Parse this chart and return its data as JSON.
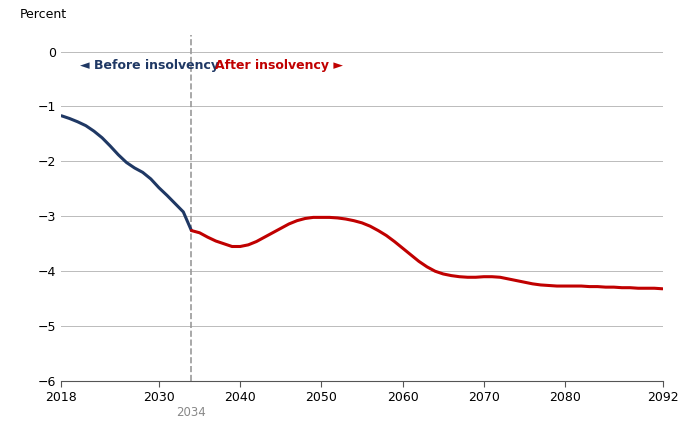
{
  "ylabel": "Percent",
  "xlim": [
    2018,
    2092
  ],
  "ylim": [
    -6,
    0.3
  ],
  "yticks": [
    0,
    -1,
    -2,
    -3,
    -4,
    -5,
    -6
  ],
  "xticks": [
    2018,
    2030,
    2040,
    2050,
    2060,
    2070,
    2080,
    2092
  ],
  "insolvency_year": 2034,
  "before_color": "#1f3864",
  "after_color": "#c00000",
  "line_width": 2.2,
  "background_color": "#ffffff",
  "grid_color": "#bbbbbb",
  "label_before": "◄ Before insolvency",
  "label_after": "After insolvency ►",
  "years_before": [
    2018,
    2019,
    2020,
    2021,
    2022,
    2023,
    2024,
    2025,
    2026,
    2027,
    2028,
    2029,
    2030,
    2031,
    2032,
    2033,
    2034
  ],
  "values_before": [
    -1.17,
    -1.22,
    -1.28,
    -1.35,
    -1.45,
    -1.57,
    -1.72,
    -1.88,
    -2.02,
    -2.12,
    -2.2,
    -2.32,
    -2.48,
    -2.62,
    -2.77,
    -2.92,
    -3.26
  ],
  "years_after": [
    2034,
    2035,
    2036,
    2037,
    2038,
    2039,
    2040,
    2041,
    2042,
    2043,
    2044,
    2045,
    2046,
    2047,
    2048,
    2049,
    2050,
    2051,
    2052,
    2053,
    2054,
    2055,
    2056,
    2057,
    2058,
    2059,
    2060,
    2061,
    2062,
    2063,
    2064,
    2065,
    2066,
    2067,
    2068,
    2069,
    2070,
    2071,
    2072,
    2073,
    2074,
    2075,
    2076,
    2077,
    2078,
    2079,
    2080,
    2081,
    2082,
    2083,
    2084,
    2085,
    2086,
    2087,
    2088,
    2089,
    2090,
    2091,
    2092
  ],
  "values_after": [
    -3.26,
    -3.3,
    -3.38,
    -3.45,
    -3.5,
    -3.55,
    -3.55,
    -3.52,
    -3.46,
    -3.38,
    -3.3,
    -3.22,
    -3.14,
    -3.08,
    -3.04,
    -3.02,
    -3.02,
    -3.02,
    -3.03,
    -3.05,
    -3.08,
    -3.12,
    -3.18,
    -3.26,
    -3.35,
    -3.46,
    -3.58,
    -3.7,
    -3.82,
    -3.92,
    -4.0,
    -4.05,
    -4.08,
    -4.1,
    -4.11,
    -4.11,
    -4.1,
    -4.1,
    -4.11,
    -4.14,
    -4.17,
    -4.2,
    -4.23,
    -4.25,
    -4.26,
    -4.27,
    -4.27,
    -4.27,
    -4.27,
    -4.28,
    -4.28,
    -4.29,
    -4.29,
    -4.3,
    -4.3,
    -4.31,
    -4.31,
    -4.31,
    -4.32
  ]
}
